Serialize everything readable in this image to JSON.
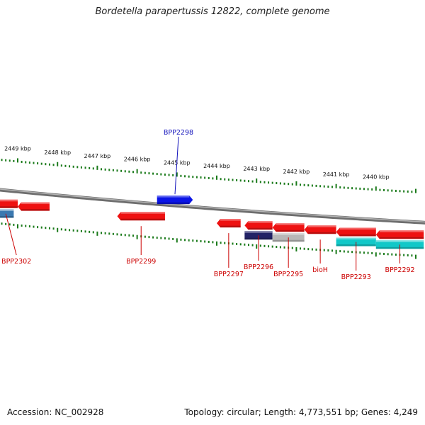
{
  "title": "Bordetella parapertussis 12822, complete genome",
  "footer": {
    "accession": "Accession: NC_002928",
    "summary": "Topology: circular; Length: 4,773,551 bp; Genes: 4,249"
  },
  "colors": {
    "backbone": "#8a8a8a",
    "tick": "#1a7a1a",
    "gene_red": "#ee1111",
    "gene_blue": "#0a14e6",
    "gene_steel": "#3a78b0",
    "gene_cyan": "#11c8c8",
    "gene_grey": "#b8b8b8",
    "gene_navy": "#222266",
    "label_red": "#cc0000",
    "label_blue": "#1111bb"
  },
  "kbp_labels": [
    {
      "text": "2449 kbp",
      "kbp": 2449
    },
    {
      "text": "2448 kbp",
      "kbp": 2448
    },
    {
      "text": "2447 kbp",
      "kbp": 2447
    },
    {
      "text": "2446 kbp",
      "kbp": 2446
    },
    {
      "text": "2445 kbp",
      "kbp": 2445
    },
    {
      "text": "2444 kbp",
      "kbp": 2444
    },
    {
      "text": "2443 kbp",
      "kbp": 2443
    },
    {
      "text": "2442 kbp",
      "kbp": 2442
    },
    {
      "text": "2441 kbp",
      "kbp": 2441
    },
    {
      "text": "2440 kbp",
      "kbp": 2440
    }
  ],
  "genes": [
    {
      "name": "BPP2298",
      "strand": "+",
      "start_kbp": 2445.5,
      "end_kbp": 2444.6,
      "color": "gene_blue",
      "label_color": "label_blue"
    },
    {
      "name": "BPP2302",
      "strand": "-",
      "start_kbp": 2449.6,
      "end_kbp": 2449.0,
      "color": "gene_red",
      "label_color": "label_red"
    },
    {
      "name": "",
      "strand": "-",
      "start_kbp": 2449.0,
      "end_kbp": 2448.2,
      "color": "gene_red",
      "label_color": "label_red"
    },
    {
      "name": "BPP2299",
      "strand": "-",
      "start_kbp": 2446.5,
      "end_kbp": 2445.3,
      "color": "gene_red",
      "label_color": "label_red"
    },
    {
      "name": "BPP2297",
      "strand": "-",
      "start_kbp": 2444.0,
      "end_kbp": 2443.4,
      "color": "gene_red",
      "label_color": "label_red"
    },
    {
      "name": "BPP2296",
      "strand": "-",
      "start_kbp": 2443.3,
      "end_kbp": 2442.6,
      "color": "gene_red",
      "label_color": "label_red"
    },
    {
      "name": "BPP2295",
      "strand": "-",
      "start_kbp": 2442.6,
      "end_kbp": 2441.8,
      "color": "gene_red",
      "label_color": "label_red"
    },
    {
      "name": "bioH",
      "strand": "-",
      "start_kbp": 2441.8,
      "end_kbp": 2441.0,
      "color": "gene_red",
      "label_color": "label_red"
    },
    {
      "name": "BPP2293",
      "strand": "-",
      "start_kbp": 2441.0,
      "end_kbp": 2440.0,
      "color": "gene_red",
      "label_color": "label_red"
    },
    {
      "name": "BPP2292",
      "strand": "-",
      "start_kbp": 2440.0,
      "end_kbp": 2438.8,
      "color": "gene_red",
      "label_color": "label_red"
    }
  ],
  "features": [
    {
      "start_kbp": 2449.6,
      "end_kbp": 2449.1,
      "row": 2,
      "color": "gene_steel"
    },
    {
      "start_kbp": 2443.3,
      "end_kbp": 2442.6,
      "row": 2,
      "color": "gene_navy"
    },
    {
      "start_kbp": 2442.6,
      "end_kbp": 2441.8,
      "row": 2,
      "color": "gene_grey"
    },
    {
      "start_kbp": 2441.0,
      "end_kbp": 2440.0,
      "row": 2,
      "color": "gene_cyan"
    },
    {
      "start_kbp": 2440.0,
      "end_kbp": 2438.8,
      "row": 2,
      "color": "gene_cyan"
    }
  ]
}
